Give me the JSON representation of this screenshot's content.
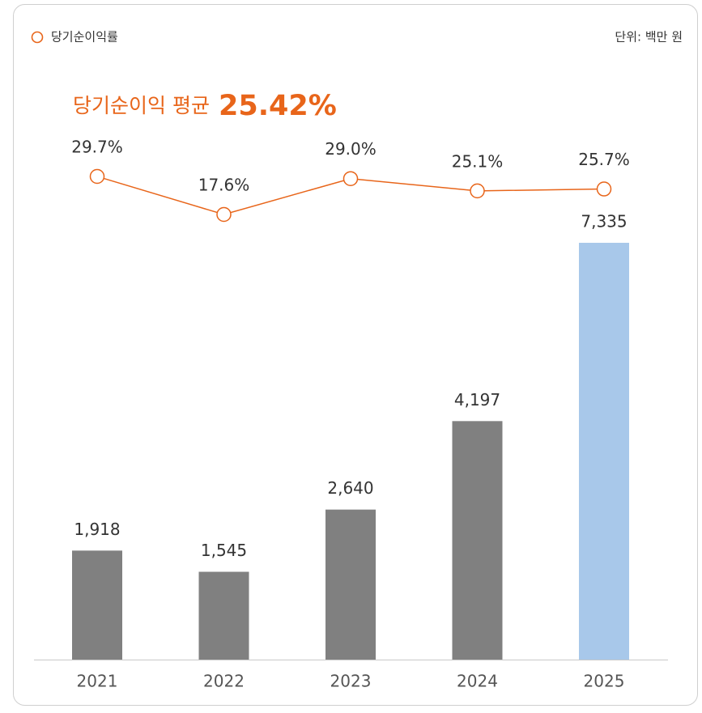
{
  "chart_data": {
    "type": "bar",
    "unit_label": "단위: 백만 원",
    "annotation": {
      "text": "당기순이익 평균",
      "value": "25.42%"
    },
    "categories": [
      "2021",
      "2022",
      "2023",
      "2024",
      "2025"
    ],
    "series": [
      {
        "type": "bar",
        "colors": [
          "#808080",
          "#808080",
          "#808080",
          "#808080",
          "#a8c8ea"
        ],
        "values": [
          1918,
          1545,
          2640,
          4197,
          7335
        ],
        "value_labels": [
          "1,918",
          "1,545",
          "2,640",
          "4,197",
          "7,335"
        ]
      },
      {
        "type": "line",
        "name": "당기순이익률",
        "color": "#e8651a",
        "values": [
          29.7,
          17.6,
          29.0,
          25.1,
          25.7
        ],
        "value_labels": [
          "29.7%",
          "17.6%",
          "29.0%",
          "25.1%",
          "25.7%"
        ]
      }
    ]
  }
}
